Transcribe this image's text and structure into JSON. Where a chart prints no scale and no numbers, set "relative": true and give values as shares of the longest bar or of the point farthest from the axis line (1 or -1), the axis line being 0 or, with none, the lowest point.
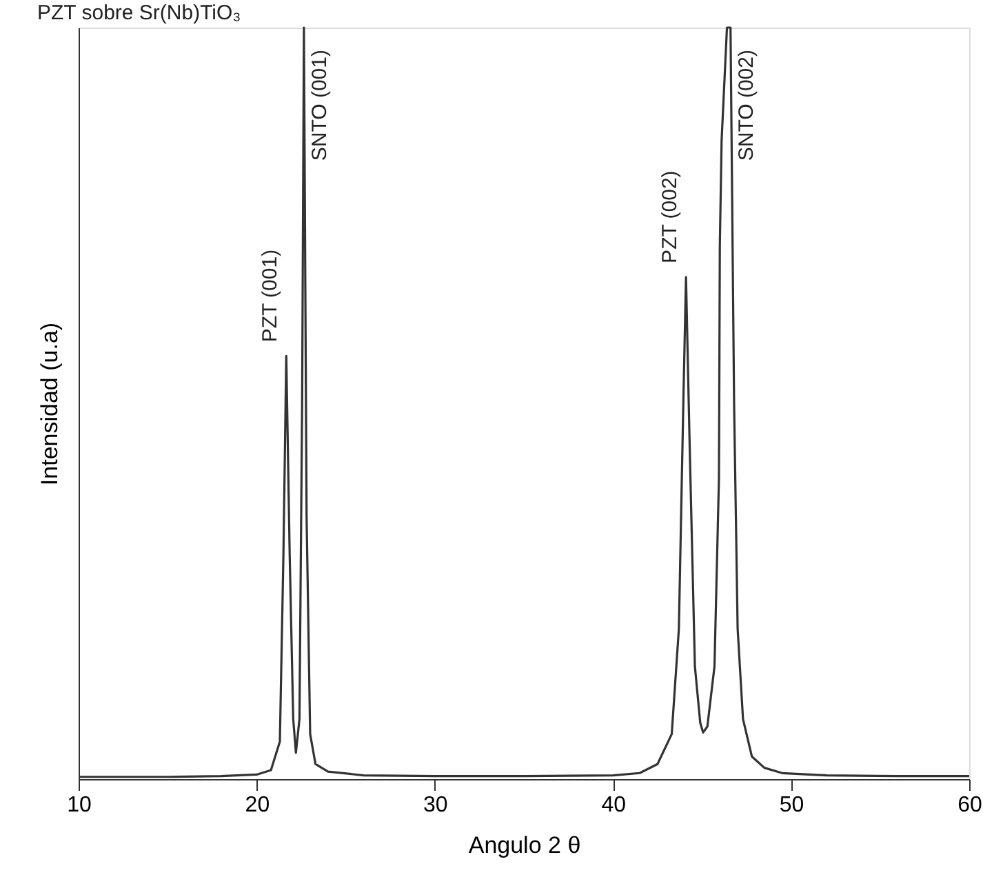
{
  "chart_data": {
    "type": "line",
    "title": "PZT sobre Sr(Nb)TiO₃",
    "xlabel": "Angulo 2 θ",
    "ylabel": "Intensidad (u.a)",
    "relative": true,
    "x": [
      10,
      15,
      18,
      20,
      20.8,
      21.3,
      21.5,
      21.66,
      21.85,
      22.05,
      22.2,
      22.4,
      22.55,
      22.65,
      22.8,
      23.0,
      23.3,
      24,
      26,
      30,
      35,
      40,
      41.5,
      42.5,
      43.3,
      43.7,
      43.95,
      44.1,
      44.3,
      44.6,
      44.9,
      45.06,
      45.3,
      45.7,
      45.95,
      46.0,
      46.1,
      46.4,
      46.6,
      46.8,
      47.0,
      47.3,
      47.8,
      48.5,
      49.5,
      52,
      56,
      60
    ],
    "series": [
      {
        "color": "#333333",
        "values": [
          0.003,
          0.003,
          0.004,
          0.006,
          0.012,
          0.05,
          0.3,
          0.563,
          0.3,
          0.08,
          0.035,
          0.08,
          0.5,
          1,
          0.35,
          0.06,
          0.02,
          0.01,
          0.005,
          0.004,
          0.004,
          0.005,
          0.008,
          0.02,
          0.06,
          0.2,
          0.5,
          0.668,
          0.45,
          0.15,
          0.075,
          0.062,
          0.07,
          0.15,
          0.4,
          0.71,
          0.85,
          1,
          1,
          0.5,
          0.2,
          0.08,
          0.03,
          0.015,
          0.008,
          0.005,
          0.004,
          0.004
        ]
      }
    ],
    "xlim": [
      10,
      60
    ],
    "xticks": [
      10,
      20,
      30,
      40,
      50,
      60
    ],
    "grid": false,
    "annotations": [
      {
        "text": "PZT (001)",
        "x": 21.66,
        "y": 0.563
      },
      {
        "text": "SNTO (001)",
        "x": 22.65,
        "y": 1
      },
      {
        "text": "PZT (002)",
        "x": 44.1,
        "y": 0.668
      },
      {
        "text": "SNTO (002)",
        "x": 46.6,
        "y": 1
      }
    ]
  }
}
